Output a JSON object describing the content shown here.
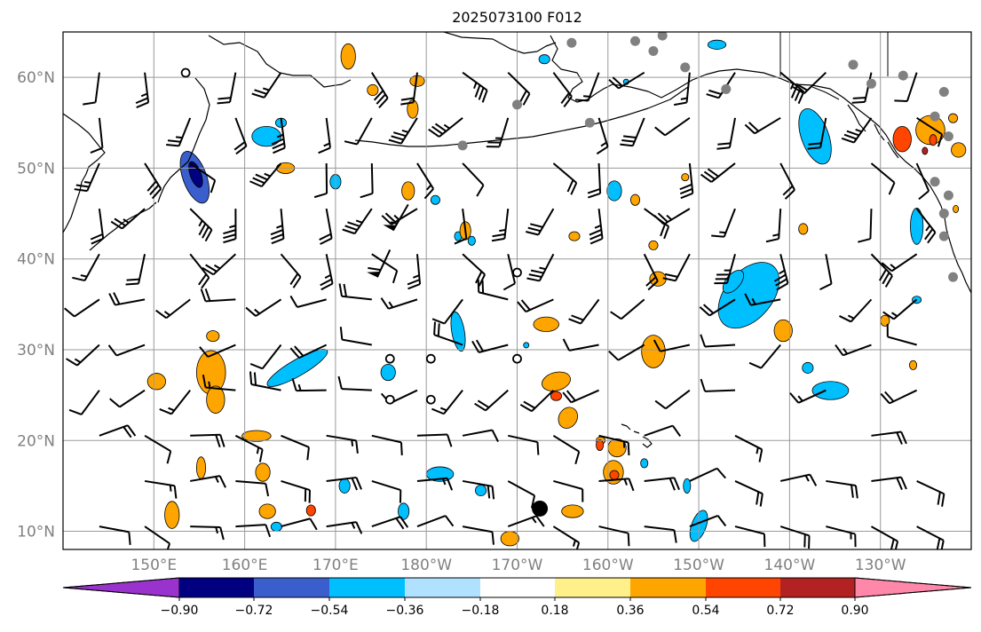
{
  "title": "2025073100 F012",
  "map": {
    "lat_range": [
      8,
      65
    ],
    "lon_range_east": [
      140,
      240
    ],
    "lat_ticks": [
      {
        "lat": 10,
        "label": "10°N"
      },
      {
        "lat": 20,
        "label": "20°N"
      },
      {
        "lat": 30,
        "label": "30°N"
      },
      {
        "lat": 40,
        "label": "40°N"
      },
      {
        "lat": 50,
        "label": "50°N"
      },
      {
        "lat": 60,
        "label": "60°N"
      }
    ],
    "lon_ticks": [
      {
        "lon": 150,
        "label": "150°E"
      },
      {
        "lon": 160,
        "label": "160°E"
      },
      {
        "lon": 170,
        "label": "170°E"
      },
      {
        "lon": 180,
        "label": "180°W"
      },
      {
        "lon": 190,
        "label": "170°W"
      },
      {
        "lon": 200,
        "label": "160°W"
      },
      {
        "lon": 210,
        "label": "150°W"
      },
      {
        "lon": 220,
        "label": "140°W"
      },
      {
        "lon": 230,
        "label": "130°W"
      }
    ],
    "gridlines": true
  },
  "colorbar": {
    "ticks": [
      "−0.90",
      "−0.72",
      "−0.54",
      "−0.36",
      "−0.18",
      "0.18",
      "0.36",
      "0.54",
      "0.72",
      "0.90"
    ],
    "colors": [
      "#9a32cd",
      "#000080",
      "#3a5fcd",
      "#00bfff",
      "#b0e2ff",
      "#ffffff",
      "#fff08a",
      "#ffa500",
      "#ff4500",
      "#b22222",
      "#ff88aa"
    ],
    "extend": "both"
  },
  "colors": {
    "gridline": "#9a9a9a",
    "coastline": "#000000",
    "marker": "#808080",
    "tick_label": "#808080"
  },
  "markers": {
    "grey_dots": [
      [
        63.8,
        196
      ],
      [
        64.0,
        203
      ],
      [
        64.6,
        206
      ],
      [
        62.9,
        205
      ],
      [
        61.1,
        208.5
      ],
      [
        61.4,
        227
      ],
      [
        60.2,
        232.5
      ],
      [
        59.3,
        229
      ],
      [
        58.7,
        213
      ],
      [
        58.4,
        237
      ],
      [
        57.0,
        190
      ],
      [
        55.7,
        236
      ],
      [
        55.0,
        198
      ],
      [
        52.5,
        184
      ],
      [
        53.5,
        237.5
      ],
      [
        48.5,
        236
      ],
      [
        47.0,
        237.5
      ],
      [
        45.0,
        237
      ],
      [
        42.5,
        237
      ],
      [
        38.0,
        238
      ]
    ],
    "open_circles": [
      [
        60.5,
        153.5
      ],
      [
        38.5,
        190
      ],
      [
        29.0,
        176
      ],
      [
        29.0,
        180.5
      ],
      [
        29.0,
        190
      ],
      [
        24.5,
        176
      ],
      [
        24.5,
        180.5
      ]
    ],
    "black_dot": [
      12.5,
      192.5
    ]
  }
}
